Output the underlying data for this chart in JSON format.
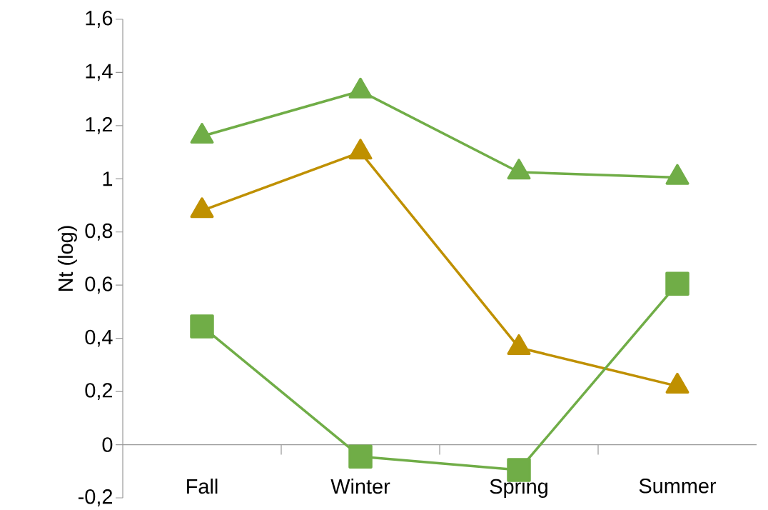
{
  "chart_data": {
    "type": "line",
    "ylabel": "Nt (log)",
    "categories": [
      "Fall",
      "Winter",
      "Spring",
      "Summer"
    ],
    "series": [
      {
        "color": "#70ad47",
        "marker": "triangle",
        "values": [
          1.16,
          1.33,
          1.025,
          1.005
        ]
      },
      {
        "color": "#bf9000",
        "marker": "triangle",
        "values": [
          0.88,
          1.1,
          0.365,
          0.22
        ]
      },
      {
        "color": "#70ad47",
        "marker": "square",
        "values": [
          0.445,
          -0.045,
          -0.095,
          0.605
        ]
      }
    ],
    "ylim": [
      -0.2,
      1.6
    ],
    "yticks": [
      {
        "value": -0.2,
        "label": "-0,2"
      },
      0,
      {
        "value": 0.2,
        "label": "0,2"
      },
      {
        "value": 0.4,
        "label": "0,4"
      },
      {
        "value": 0.6,
        "label": "0,6"
      },
      {
        "value": 0.8,
        "label": "0,8"
      },
      1,
      {
        "value": 1.2,
        "label": "1,2"
      },
      {
        "value": 1.4,
        "label": "1,4"
      },
      {
        "value": 1.6,
        "label": "1,6"
      }
    ],
    "grid": false,
    "line_style": "solid"
  }
}
